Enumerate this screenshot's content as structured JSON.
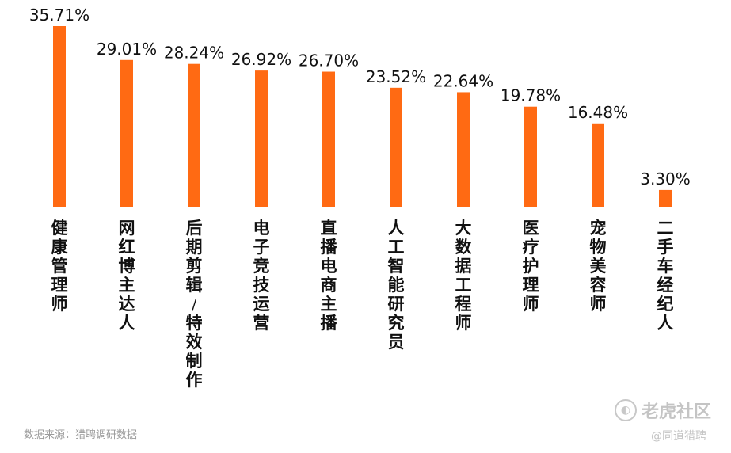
{
  "chart_data": {
    "type": "bar",
    "title": "",
    "xlabel": "",
    "ylabel": "",
    "ylim": [
      0,
      35.71
    ],
    "grid": false,
    "legend": "none",
    "bar_color": "#ff6a13",
    "categories": [
      "健康管理师",
      "网红博主达人",
      "后期剪辑/特效制作",
      "电子竞技运营",
      "直播电商主播",
      "人工智能研究员",
      "大数据工程师",
      "医疗护理师",
      "宠物美容师",
      "二手车经纪人"
    ],
    "values": [
      35.71,
      29.01,
      28.24,
      26.92,
      26.7,
      23.52,
      22.64,
      19.78,
      16.48,
      3.3
    ],
    "value_labels": [
      "35.71%",
      "29.01%",
      "28.24%",
      "26.92%",
      "26.70%",
      "23.52%",
      "22.64%",
      "19.78%",
      "16.48%",
      "3.30%"
    ]
  },
  "source": "数据来源：猎聘调研数据",
  "watermark": {
    "icon": "tiger-community-logo-icon",
    "brand": "老虎社区",
    "handle": "@同道猎聘"
  }
}
